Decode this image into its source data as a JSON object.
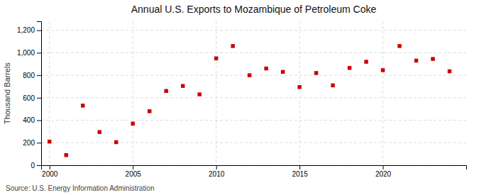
{
  "chart_data": {
    "type": "scatter",
    "title": "Annual U.S. Exports to Mozambique of Petroleum Coke",
    "ylabel": "Thousand Barrels",
    "annotations": [
      "Source: U.S. Energy Information Administration"
    ],
    "x": [
      2000,
      2001,
      2002,
      2003,
      2004,
      2005,
      2006,
      2007,
      2008,
      2009,
      2010,
      2011,
      2012,
      2013,
      2014,
      2015,
      2016,
      2017,
      2018,
      2019,
      2020,
      2021,
      2022,
      2023,
      2024
    ],
    "values": [
      210,
      90,
      530,
      295,
      205,
      370,
      480,
      660,
      705,
      630,
      950,
      1060,
      800,
      860,
      830,
      695,
      820,
      710,
      865,
      920,
      845,
      1060,
      930,
      945,
      835
    ],
    "color": "#cc0000",
    "marker": "square",
    "xlim": [
      1999.5,
      2025
    ],
    "xticks": [
      2000,
      2005,
      2010,
      2015,
      2020
    ],
    "ylim": [
      0,
      1280
    ],
    "yticks": [
      0,
      200,
      400,
      600,
      800,
      {
        "value": 1000,
        "label": "1,000"
      },
      {
        "value": 1200,
        "label": "1,200"
      }
    ],
    "grid": true
  }
}
